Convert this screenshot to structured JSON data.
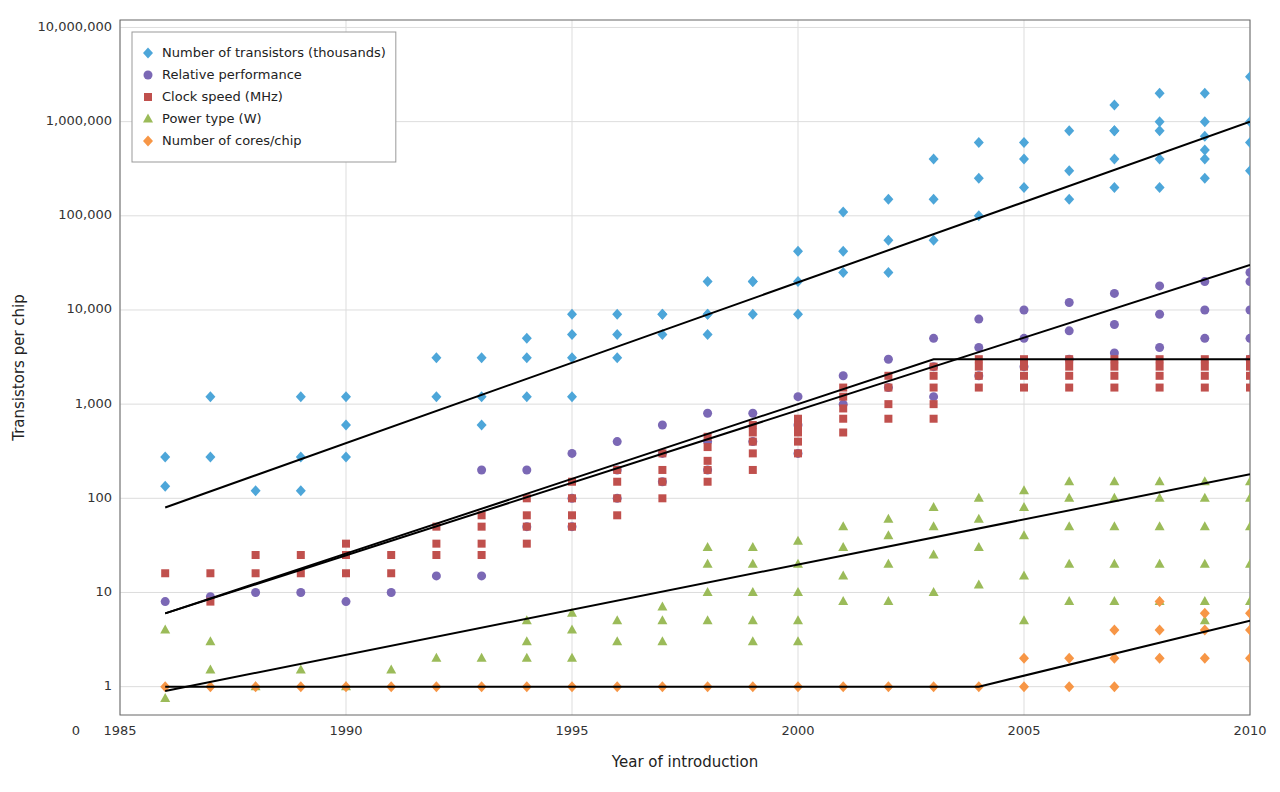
{
  "chart_data": {
    "type": "scatter",
    "xlabel": "Year of introduction",
    "ylabel": "Transistors per chip",
    "xlim": [
      1985,
      2010
    ],
    "ylim": [
      0.5,
      12000000
    ],
    "log": "y",
    "grid": true,
    "legend": "upper left",
    "xticks": [
      1985,
      1990,
      1995,
      2000,
      2005,
      2010
    ],
    "yticks": [
      1,
      10,
      100,
      {
        "value": 1000,
        "label": "1,000"
      },
      {
        "value": 10000,
        "label": "10,000"
      },
      {
        "value": 100000,
        "label": "100,000"
      },
      {
        "value": 1000000,
        "label": "1,000,000"
      },
      {
        "value": 10000000,
        "label": "10,000,000"
      }
    ],
    "annotations": [
      {
        "text": "0"
      }
    ],
    "series": [
      {
        "name": "Number of transistors (thousands)",
        "type": "scatter",
        "color": "#4da6d9",
        "marker": "diamond",
        "x": [
          1986,
          1986,
          1987,
          1987,
          1988,
          1989,
          1989,
          1989,
          1990,
          1990,
          1990,
          1992,
          1992,
          1993,
          1993,
          1993,
          1994,
          1994,
          1994,
          1995,
          1995,
          1995,
          1995,
          1996,
          1996,
          1996,
          1997,
          1997,
          1997,
          1998,
          1998,
          1998,
          1998,
          1999,
          1999,
          1999,
          2000,
          2000,
          2000,
          2001,
          2001,
          2001,
          2002,
          2002,
          2002,
          2003,
          2003,
          2003,
          2004,
          2004,
          2004,
          2005,
          2005,
          2005,
          2006,
          2006,
          2006,
          2007,
          2007,
          2007,
          2007,
          2007,
          2008,
          2008,
          2008,
          2008,
          2008,
          2009,
          2009,
          2009,
          2009,
          2009,
          2009,
          2010,
          2010,
          2010,
          2010
        ],
        "values": [
          275,
          134,
          1200,
          275,
          120,
          1200,
          275,
          120,
          1200,
          600,
          275,
          3100,
          1200,
          3100,
          1200,
          600,
          5000,
          3100,
          1200,
          9000,
          5500,
          3100,
          1200,
          9000,
          5500,
          3100,
          9000,
          5500,
          9000,
          20000,
          9000,
          5500,
          9000,
          20000,
          20000,
          9000,
          42000,
          20000,
          9000,
          42000,
          25000,
          110000,
          150000,
          55000,
          25000,
          400000,
          150000,
          55000,
          600000,
          250000,
          100000,
          400000,
          200000,
          600000,
          800000,
          300000,
          150000,
          800000,
          400000,
          200000,
          1500000,
          800000,
          800000,
          400000,
          200000,
          2000000,
          1000000,
          2000000,
          1000000,
          500000,
          250000,
          700000,
          400000,
          3000000,
          1000000,
          600000,
          300000
        ]
      },
      {
        "name": "Relative performance",
        "type": "scatter",
        "color": "#7b68b5",
        "marker": "circle",
        "x": [
          1986,
          1987,
          1988,
          1989,
          1990,
          1991,
          1992,
          1993,
          1993,
          1994,
          1994,
          1995,
          1995,
          1995,
          1996,
          1996,
          1996,
          1997,
          1997,
          1997,
          1998,
          1998,
          1998,
          1999,
          1999,
          2000,
          2000,
          2000,
          2001,
          2001,
          2002,
          2002,
          2003,
          2003,
          2003,
          2004,
          2004,
          2004,
          2005,
          2005,
          2005,
          2006,
          2006,
          2006,
          2007,
          2007,
          2007,
          2008,
          2008,
          2008,
          2009,
          2009,
          2009,
          2010,
          2010,
          2010,
          2010,
          2010
        ],
        "values": [
          8,
          9,
          10,
          10,
          8,
          10,
          15,
          15,
          200,
          200,
          50,
          300,
          100,
          50,
          400,
          200,
          100,
          600,
          300,
          150,
          800,
          400,
          200,
          800,
          400,
          1200,
          600,
          300,
          2000,
          1000,
          3000,
          1500,
          5000,
          2500,
          1200,
          8000,
          4000,
          2000,
          10000,
          5000,
          2500,
          12000,
          6000,
          3000,
          15000,
          7000,
          3500,
          18000,
          9000,
          4000,
          20000,
          10000,
          5000,
          20000,
          10000,
          5000,
          25000,
          3000
        ]
      },
      {
        "name": "Clock speed (MHz)",
        "type": "scatter",
        "color": "#c0504d",
        "marker": "square",
        "x": [
          1986,
          1987,
          1987,
          1988,
          1988,
          1989,
          1989,
          1990,
          1990,
          1990,
          1991,
          1991,
          1992,
          1992,
          1992,
          1993,
          1993,
          1993,
          1993,
          1994,
          1994,
          1994,
          1994,
          1995,
          1995,
          1995,
          1995,
          1996,
          1996,
          1996,
          1996,
          1997,
          1997,
          1997,
          1997,
          1998,
          1998,
          1998,
          1998,
          1998,
          1999,
          1999,
          1999,
          1999,
          1999,
          2000,
          2000,
          2000,
          2000,
          2000,
          2001,
          2001,
          2001,
          2001,
          2001,
          2002,
          2002,
          2002,
          2002,
          2003,
          2003,
          2003,
          2003,
          2003,
          2004,
          2004,
          2004,
          2004,
          2005,
          2005,
          2005,
          2005,
          2006,
          2006,
          2006,
          2006,
          2007,
          2007,
          2007,
          2007,
          2008,
          2008,
          2008,
          2008,
          2009,
          2009,
          2009,
          2009,
          2010,
          2010,
          2010,
          2010
        ],
        "values": [
          16,
          16,
          8,
          25,
          16,
          25,
          16,
          33,
          25,
          16,
          25,
          16,
          50,
          33,
          25,
          66,
          50,
          33,
          25,
          100,
          66,
          50,
          33,
          150,
          100,
          66,
          50,
          200,
          150,
          100,
          66,
          300,
          200,
          150,
          100,
          450,
          350,
          250,
          200,
          150,
          600,
          500,
          400,
          300,
          200,
          700,
          600,
          500,
          400,
          300,
          1500,
          1200,
          900,
          700,
          500,
          2000,
          1500,
          1000,
          700,
          2500,
          2000,
          1500,
          1000,
          700,
          3000,
          2500,
          2000,
          1500,
          3000,
          2500,
          2000,
          1500,
          3000,
          2500,
          2000,
          1500,
          3000,
          2500,
          2000,
          1500,
          3000,
          2500,
          2000,
          1500,
          3000,
          2500,
          2000,
          1500,
          3000,
          2500,
          2000,
          1500
        ]
      },
      {
        "name": "Power type (W)",
        "type": "scatter",
        "color": "#9bbb59",
        "marker": "triangle",
        "x": [
          1986,
          1986,
          1987,
          1987,
          1988,
          1989,
          1990,
          1991,
          1992,
          1993,
          1994,
          1994,
          1994,
          1995,
          1995,
          1995,
          1996,
          1996,
          1997,
          1997,
          1997,
          1998,
          1998,
          1998,
          1998,
          1999,
          1999,
          1999,
          1999,
          1999,
          2000,
          2000,
          2000,
          2000,
          2000,
          2001,
          2001,
          2001,
          2001,
          2002,
          2002,
          2002,
          2002,
          2003,
          2003,
          2003,
          2003,
          2004,
          2004,
          2004,
          2004,
          2005,
          2005,
          2005,
          2005,
          2005,
          2006,
          2006,
          2006,
          2006,
          2006,
          2007,
          2007,
          2007,
          2007,
          2007,
          2008,
          2008,
          2008,
          2008,
          2008,
          2009,
          2009,
          2009,
          2009,
          2009,
          2009,
          2010,
          2010,
          2010,
          2010,
          2010
        ],
        "values": [
          0.75,
          4,
          1.5,
          3,
          1,
          1.5,
          1,
          1.5,
          2,
          2,
          5,
          3,
          2,
          6,
          4,
          2,
          5,
          3,
          7,
          5,
          3,
          30,
          20,
          10,
          5,
          30,
          20,
          10,
          5,
          3,
          35,
          20,
          10,
          5,
          3,
          50,
          30,
          15,
          8,
          60,
          40,
          20,
          8,
          80,
          50,
          25,
          10,
          100,
          60,
          30,
          12,
          120,
          80,
          40,
          15,
          5,
          150,
          100,
          50,
          20,
          8,
          150,
          100,
          50,
          20,
          8,
          150,
          100,
          50,
          20,
          8,
          150,
          100,
          50,
          20,
          8,
          5,
          150,
          100,
          50,
          20,
          8
        ]
      },
      {
        "name": "Number of cores/chip",
        "type": "scatter",
        "color": "#f79646",
        "marker": "diamond",
        "x": [
          1986,
          1987,
          1988,
          1989,
          1990,
          1991,
          1992,
          1993,
          1994,
          1995,
          1996,
          1997,
          1998,
          1999,
          2000,
          2001,
          2002,
          2003,
          2004,
          2005,
          2005,
          2006,
          2006,
          2007,
          2007,
          2007,
          2008,
          2008,
          2008,
          2009,
          2009,
          2009,
          2010,
          2010,
          2010
        ],
        "values": [
          1,
          1,
          1,
          1,
          1,
          1,
          1,
          1,
          1,
          1,
          1,
          1,
          1,
          1,
          1,
          1,
          1,
          1,
          1,
          2,
          1,
          2,
          1,
          4,
          2,
          1,
          8,
          4,
          2,
          6,
          4,
          2,
          6,
          4,
          2
        ]
      },
      {
        "type": "line",
        "color": "black",
        "x": [
          1986,
          2010
        ],
        "values": [
          80,
          1000000
        ]
      },
      {
        "type": "line",
        "color": "black",
        "x": [
          1986,
          2010
        ],
        "values": [
          6,
          30000
        ]
      },
      {
        "type": "line",
        "color": "black",
        "x": [
          1986,
          2003,
          2010
        ],
        "values": [
          6,
          3000,
          3000
        ]
      },
      {
        "type": "line",
        "color": "black",
        "x": [
          1986,
          2010
        ],
        "values": [
          0.9,
          180
        ]
      },
      {
        "type": "line",
        "color": "black",
        "x": [
          1986,
          2004,
          2010
        ],
        "values": [
          1,
          1,
          5
        ]
      }
    ]
  }
}
